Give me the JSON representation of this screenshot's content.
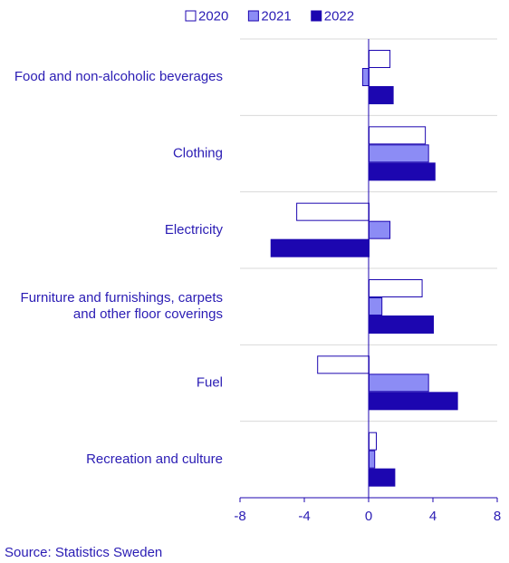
{
  "chart_data": {
    "type": "barh",
    "categories": [
      "Food and non-alcoholic beverages",
      "Clothing",
      "Electricity",
      "Furniture and furnishings, carpets\nand other floor coverings",
      "Fuel",
      "Recreation and culture"
    ],
    "series": [
      {
        "name": "2020",
        "color": "#ffffff",
        "values": [
          1.3,
          3.5,
          -4.5,
          3.3,
          -3.2,
          0.45
        ]
      },
      {
        "name": "2021",
        "color": "#8c8cf5",
        "values": [
          -0.4,
          3.7,
          1.3,
          0.8,
          3.7,
          0.35
        ]
      },
      {
        "name": "2022",
        "color": "#1c06b0",
        "values": [
          1.5,
          4.1,
          -6.1,
          4.0,
          5.5,
          1.6
        ]
      }
    ],
    "xlim": [
      -8,
      8
    ],
    "xticks": [
      -8,
      -4,
      0,
      4,
      8
    ],
    "grid": true,
    "source": "Source: Statistics Sweden"
  }
}
